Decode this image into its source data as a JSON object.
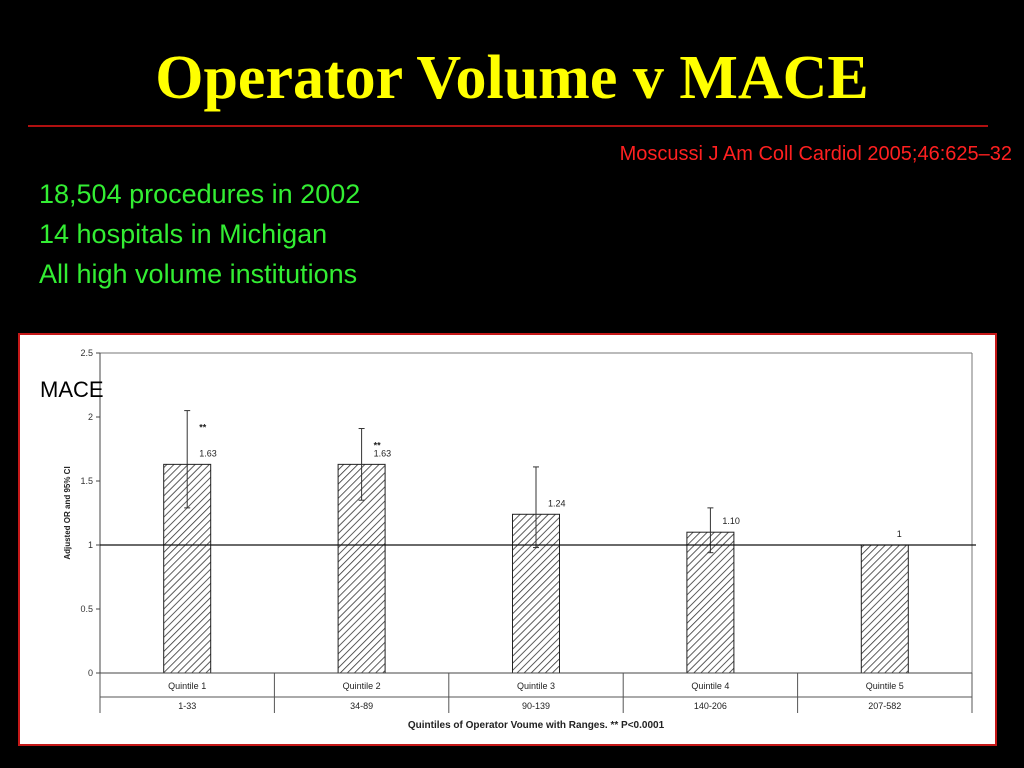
{
  "slide": {
    "title": "Operator Volume v MACE",
    "citation": "Moscussi J Am Coll Cardiol 2005;46:625–32",
    "bullets": [
      "18,504 procedures in 2002",
      "14 hospitals in Michigan",
      "All high volume institutions"
    ],
    "chart_side_label": "MACE"
  },
  "colors": {
    "background": "#000000",
    "title": "#ffff00",
    "citation": "#ff2020",
    "bullets": "#33ee33",
    "frame_border": "#c51818"
  },
  "chart_data": {
    "type": "bar",
    "categories": [
      "Quintile 1",
      "Quintile 2",
      "Quintile 3",
      "Quintile 4",
      "Quintile 5"
    ],
    "ranges": [
      "1-33",
      "34-89",
      "90-139",
      "140-206",
      "207-582"
    ],
    "values": [
      1.63,
      1.63,
      1.24,
      1.1,
      1
    ],
    "value_labels": [
      "1.63",
      "1.63",
      "1.24",
      "1.10",
      "1"
    ],
    "ci_low": [
      1.29,
      1.35,
      0.98,
      0.94,
      null
    ],
    "ci_high": [
      2.05,
      1.91,
      1.61,
      1.29,
      null
    ],
    "significance": [
      "**",
      "**",
      "",
      "",
      ""
    ],
    "reference_line": 1,
    "ylabel": "Adjusted OR and 95% CI",
    "xlabel": "Quintiles of Operator Voume with Ranges. ** P<0.0001",
    "ylim": [
      0,
      2.5
    ],
    "yticks": [
      "0",
      "0.5",
      "1",
      "1.5",
      "2",
      "2.5"
    ],
    "bar_pattern": "diagonal-hatch"
  }
}
